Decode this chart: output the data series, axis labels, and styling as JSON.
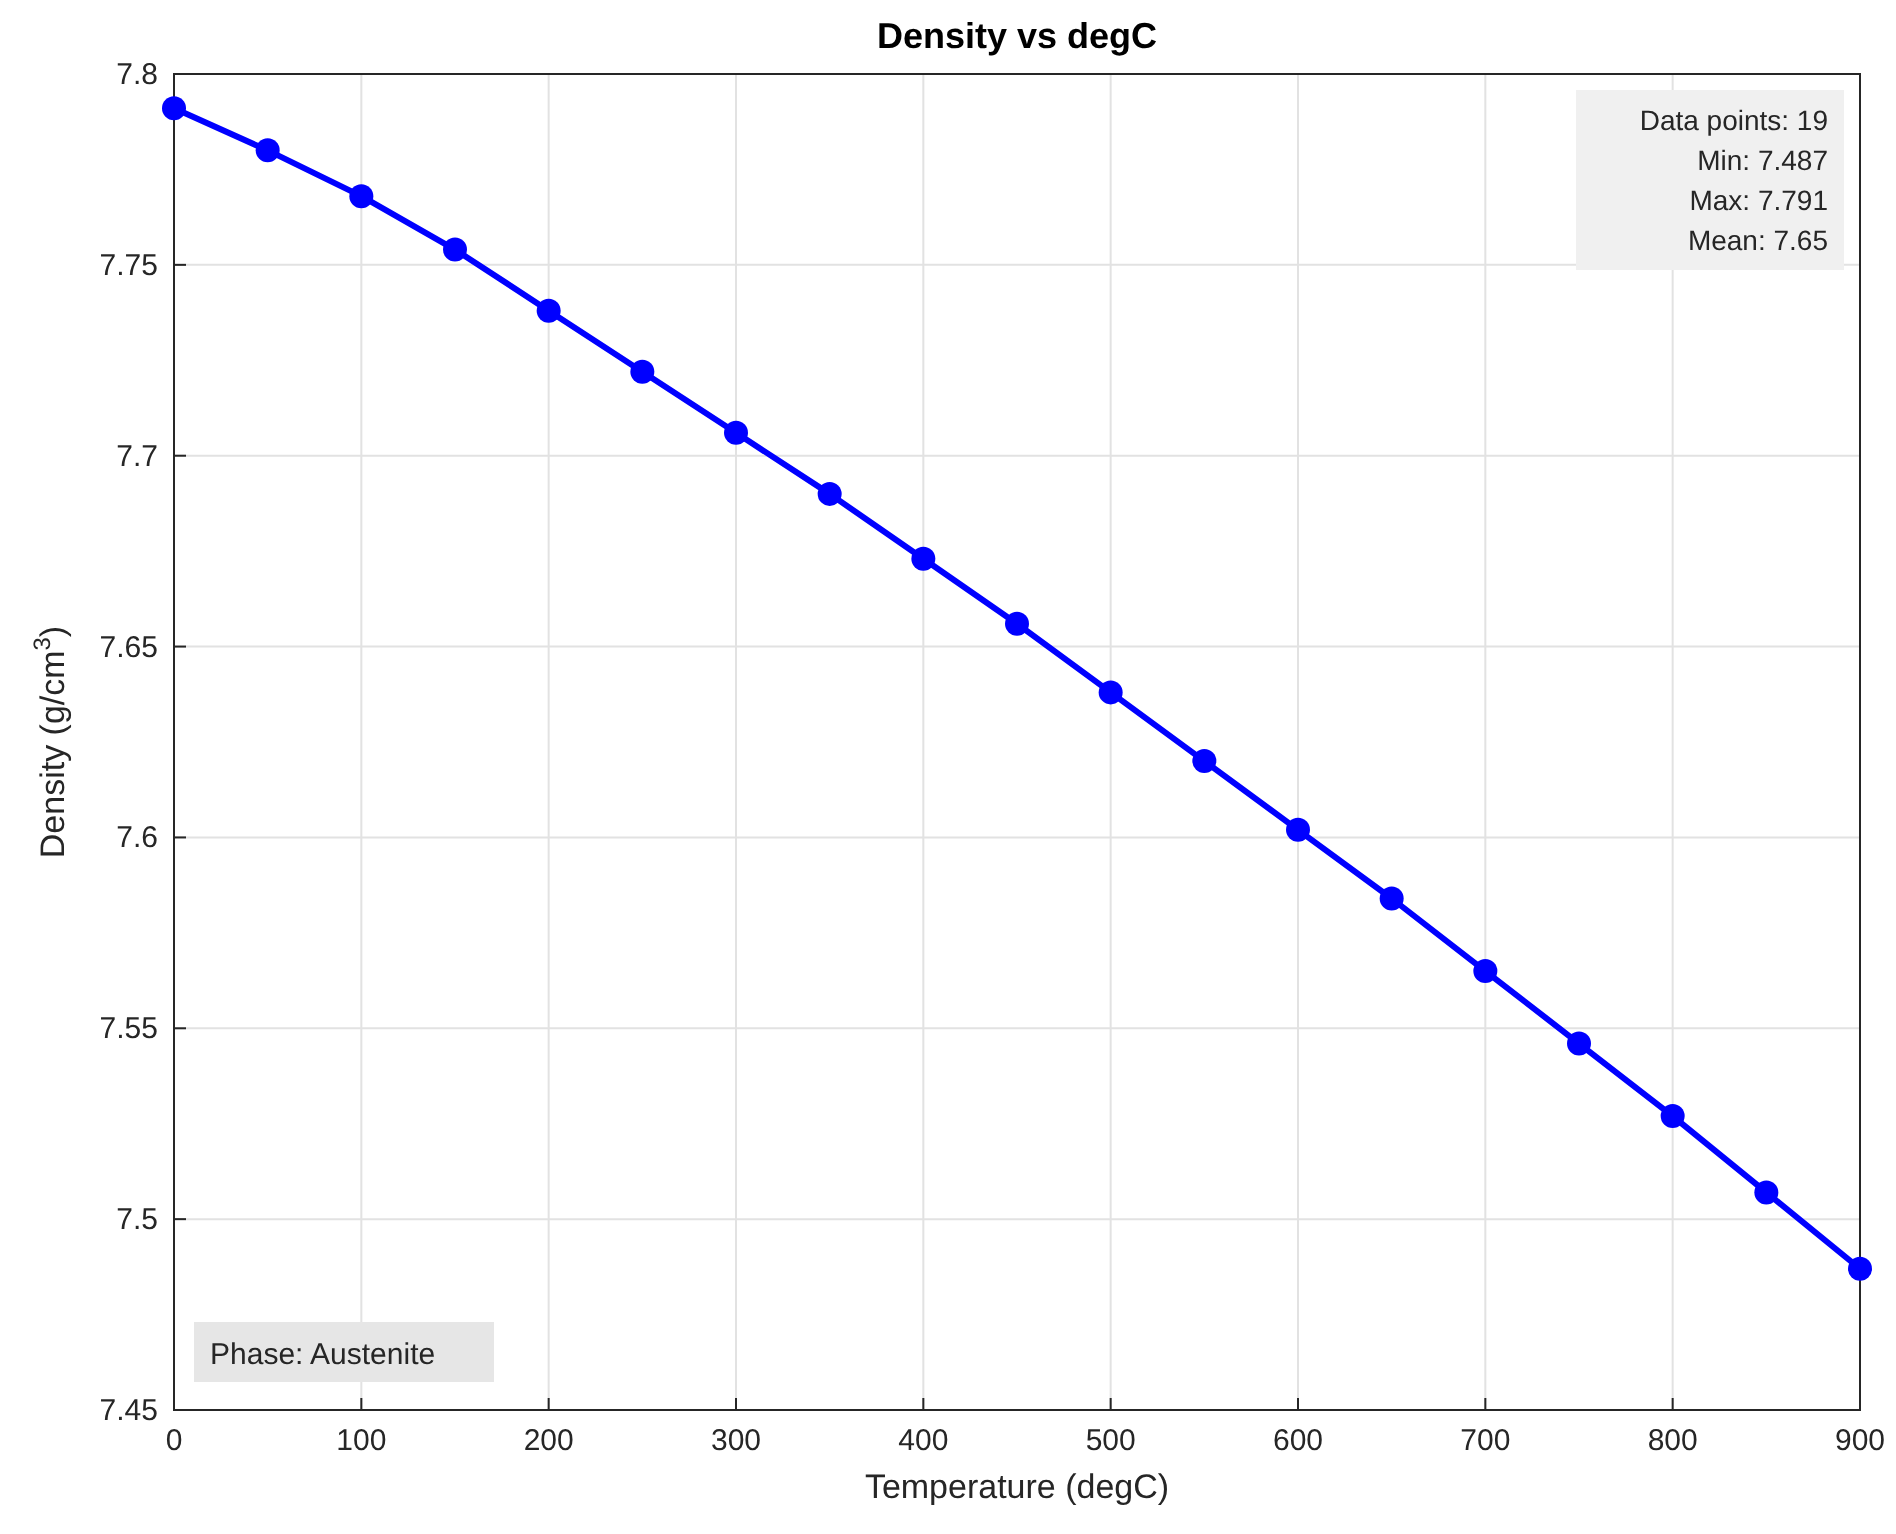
{
  "chart_data": {
    "type": "line",
    "title": "Density vs degC",
    "xlabel": "Temperature (degC)",
    "ylabel": "Density (g/cm$^{3}$)",
    "x": [
      0,
      50,
      100,
      150,
      200,
      250,
      300,
      350,
      400,
      450,
      500,
      550,
      600,
      650,
      700,
      750,
      800,
      850,
      900
    ],
    "series": [
      {
        "color": "#0000ff",
        "values": [
          7.791,
          7.78,
          7.768,
          7.754,
          7.738,
          7.722,
          7.706,
          7.69,
          7.673,
          7.656,
          7.638,
          7.62,
          7.602,
          7.584,
          7.565,
          7.546,
          7.527,
          7.507,
          7.487
        ]
      }
    ],
    "xlim": [
      0,
      900
    ],
    "xticks": [
      0,
      100,
      200,
      300,
      400,
      500,
      600,
      700,
      800,
      900
    ],
    "ylim": [
      7.45,
      7.8
    ],
    "yticks": [
      7.45,
      7.5,
      7.55,
      7.6,
      7.65,
      7.7,
      7.75,
      7.8
    ],
    "grid": true,
    "marker": "circle",
    "line_style": "solid",
    "annotations": [
      "Phase: Austenite",
      "Data points: 19\nMin: 7.487\nMax: 7.791\nMean: 7.65"
    ]
  }
}
